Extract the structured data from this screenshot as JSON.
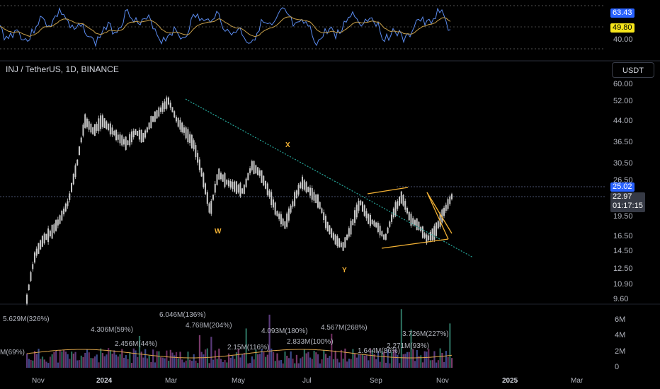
{
  "symbol_title": "INJ / TetherUS, 1D, BINANCE",
  "currency_button": "USDT",
  "rsi": {
    "current": "63.43",
    "ma": "49.80",
    "level_label": "40.00",
    "colors": {
      "rsi": "#5b8cf0",
      "ma": "#c8a04a"
    }
  },
  "price_axis": [
    "60.00",
    "52.00",
    "44.00",
    "36.50",
    "30.50",
    "26.50",
    "19.50",
    "16.50",
    "14.50",
    "12.50",
    "10.90",
    "9.60"
  ],
  "price_badges": {
    "level": "25.02",
    "current": "22.97",
    "countdown": "01:17:15"
  },
  "wave_labels": [
    "W",
    "X",
    "Y"
  ],
  "volume_axis": [
    "6M",
    "4M",
    "2M",
    "0"
  ],
  "volume_labels": [
    "5.629M(326%)",
    "4.306M(59%)",
    "2.456M(44%)",
    "6.046M(136%)",
    "4.768M(204%)",
    "2.15M(116%)",
    "4.093M(180%)",
    "2.833M(100%)",
    "4.567M(268%)",
    "1.644M(86%)",
    "2.271M(93%)",
    "3.726M(227%)",
    "M(69%)"
  ],
  "time_axis": [
    "Nov",
    "2024",
    "Mar",
    "May",
    "Jul",
    "Sep",
    "Nov",
    "2025",
    "Mar"
  ],
  "colors": {
    "candle": "#c9c9c9",
    "trend": "#26a69a",
    "pattern": "#f2b134",
    "accent": "#2962ff"
  },
  "chart_data": {
    "type": "line",
    "series": [
      {
        "values": [
          9.6,
          14,
          16,
          17,
          19,
          22,
          30,
          44,
          40,
          44,
          41,
          38,
          36,
          40,
          38,
          44,
          48,
          52,
          44,
          40,
          36,
          28,
          20,
          28,
          26,
          25,
          24,
          30,
          28,
          24,
          20,
          18,
          22,
          26,
          24,
          22,
          18,
          16,
          15,
          18,
          22,
          19,
          18,
          16,
          20,
          23,
          19,
          18,
          16,
          17,
          20,
          23
        ]
      }
    ]
  }
}
